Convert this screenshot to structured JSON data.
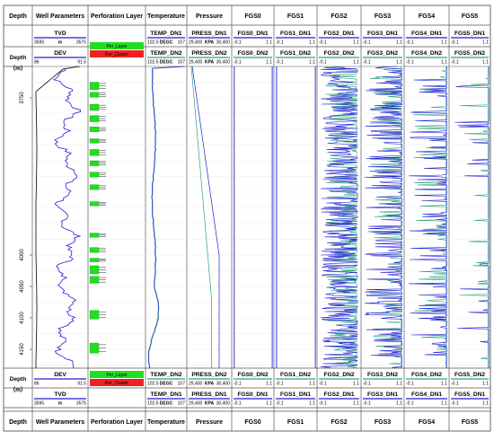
{
  "chart_data": {
    "type": "well-log",
    "depth_axis": {
      "unit": "m",
      "range": [
        3700,
        4180
      ],
      "ticks": [
        3750,
        4000,
        4050,
        4100,
        4150
      ],
      "tick_labels": [
        "3750",
        "4000",
        "4050",
        "4100",
        "4150"
      ],
      "direction": "top-to-bottom"
    },
    "columns": [
      {
        "title": "Depth"
      },
      {
        "title": "Well Parameters"
      },
      {
        "title": "Perforation Layer"
      },
      {
        "title": "Temperature"
      },
      {
        "title": "Pressure"
      },
      {
        "title": "FGS0"
      },
      {
        "title": "FGS1"
      },
      {
        "title": "FGS2"
      },
      {
        "title": "FGS3"
      },
      {
        "title": "FGS4"
      },
      {
        "title": "FGS5"
      }
    ],
    "depth_label": {
      "name": "Depth",
      "unit": "（m）"
    },
    "header_top": [
      {
        "name": "TVD",
        "min": "3595",
        "unit": "m",
        "max": "3575",
        "color": "#1f1fd6"
      },
      {
        "name": "TEMP_DN1",
        "min": "102.5",
        "unit": "DEGC",
        "max": "107",
        "color": "#1f1fd6"
      },
      {
        "name": "PRESS_DN1",
        "min": "29,400",
        "unit": "KPA",
        "max": "30,400",
        "color": "#1f1fd6"
      },
      {
        "name": "FGS0_DN1",
        "min": "-0.1",
        "unit": "",
        "max": "1.1",
        "color": "#1f1fd6"
      },
      {
        "name": "FGS1_DN1",
        "min": "-0.1",
        "unit": "",
        "max": "1.1",
        "color": "#1f1fd6"
      },
      {
        "name": "FGS2_DN1",
        "min": "-0.1",
        "unit": "",
        "max": "1.1",
        "color": "#1f1fd6"
      },
      {
        "name": "FGS3_DN1",
        "min": "-0.1",
        "unit": "",
        "max": "1.1",
        "color": "#1f1fd6"
      },
      {
        "name": "FGS4_DN1",
        "min": "-0.1",
        "unit": "",
        "max": "1.1",
        "color": "#1f1fd6"
      },
      {
        "name": "FGS5_DN1",
        "min": "-0.1",
        "unit": "",
        "max": "1.1",
        "color": "#1f1fd6"
      }
    ],
    "header_second": [
      {
        "name": "DEV",
        "min": "86",
        "unit": "",
        "max": "91.5",
        "color": "#1f1fd6"
      },
      {
        "name": "TEMP_DN2",
        "min": "102.5",
        "unit": "DEGC",
        "max": "107",
        "color": "#2aa37a"
      },
      {
        "name": "PRESS_DN2",
        "min": "29,400",
        "unit": "KPA",
        "max": "30,400",
        "color": "#2aa37a"
      },
      {
        "name": "FGS0_DN2",
        "min": "-0.1",
        "unit": "",
        "max": "1.1",
        "color": "#2aa37a"
      },
      {
        "name": "FGS1_DN2",
        "min": "-0.1",
        "unit": "",
        "max": "1.1",
        "color": "#2aa37a"
      },
      {
        "name": "FGS2_DN2",
        "min": "-0.1",
        "unit": "",
        "max": "1.1",
        "color": "#2aa37a"
      },
      {
        "name": "FGS3_DN2",
        "min": "-0.1",
        "unit": "",
        "max": "1.1",
        "color": "#2aa37a"
      },
      {
        "name": "FGS4_DN2",
        "min": "-0.1",
        "unit": "",
        "max": "1.1",
        "color": "#2aa37a"
      },
      {
        "name": "FGS5_DN2",
        "min": "-0.1",
        "unit": "",
        "max": "1.1",
        "color": "#2aa37a"
      }
    ],
    "perforation_legend": [
      {
        "name": "Per_Layer",
        "min": "0.5",
        "max": "1.5",
        "color": "#22dd22"
      },
      {
        "name": "Per_Cluster",
        "min": "0.5",
        "max": "1.5",
        "color": "#ee2222"
      }
    ],
    "perforation_layers_depth": [
      [
        3725,
        3737
      ],
      [
        3741,
        3749
      ],
      [
        3760,
        3770
      ],
      [
        3778,
        3788
      ],
      [
        3796,
        3804
      ],
      [
        3815,
        3822
      ],
      [
        3832,
        3842
      ],
      [
        3850,
        3858
      ],
      [
        3868,
        3876
      ],
      [
        3888,
        3896
      ],
      [
        3915,
        3922
      ],
      [
        3965,
        3972
      ],
      [
        3988,
        3996
      ],
      [
        4005,
        4011
      ],
      [
        4017,
        4030
      ],
      [
        4034,
        4045
      ],
      [
        4088,
        4102
      ],
      [
        4140,
        4156
      ]
    ],
    "series_colors": {
      "dn1": "#1f1fd6",
      "dn2": "#2aa37a",
      "tvd": "#000000"
    },
    "grid": true
  }
}
